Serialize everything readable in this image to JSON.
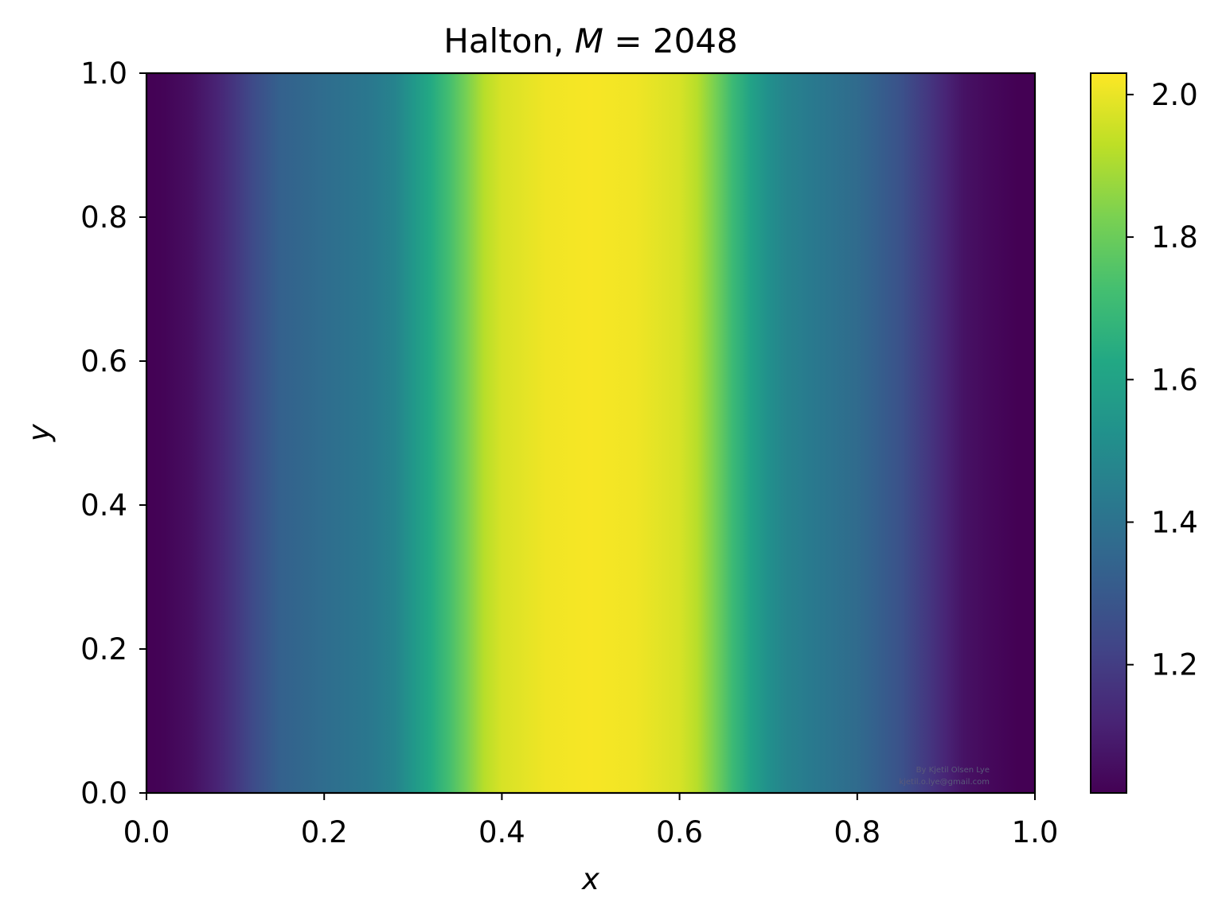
{
  "chart_data": {
    "type": "heatmap",
    "title_prefix": "Halton, ",
    "title_var": "M",
    "title_eq": " = 2048",
    "xlabel": "x",
    "ylabel": "y",
    "xlim": [
      0.0,
      1.0
    ],
    "ylim": [
      0.0,
      1.0
    ],
    "xticks": [
      "0.0",
      "0.2",
      "0.4",
      "0.6",
      "0.8",
      "1.0"
    ],
    "yticks": [
      "0.0",
      "0.2",
      "0.4",
      "0.6",
      "0.8",
      "1.0"
    ],
    "grid": false,
    "colormap": "viridis",
    "colorbar": {
      "min": 1.02,
      "max": 2.03,
      "ticks": [
        "1.2",
        "1.4",
        "1.6",
        "1.8",
        "2.0"
      ]
    },
    "field_description": "Values vary primarily with x; maximum near x = 0.5 and minimum at x = 0 and x = 1; roughly constant along y.",
    "profile_x": [
      0.0,
      0.02,
      0.05,
      0.08,
      0.1,
      0.12,
      0.15,
      0.18,
      0.2,
      0.25,
      0.28,
      0.3,
      0.32,
      0.34,
      0.36,
      0.38,
      0.4,
      0.45,
      0.5,
      0.55,
      0.6,
      0.62,
      0.64,
      0.66,
      0.68,
      0.7,
      0.72,
      0.75,
      0.8,
      0.82,
      0.85,
      0.88,
      0.9,
      0.92,
      0.95,
      0.98,
      1.0
    ],
    "profile_values": [
      1.02,
      1.03,
      1.06,
      1.12,
      1.18,
      1.25,
      1.33,
      1.36,
      1.38,
      1.42,
      1.47,
      1.55,
      1.63,
      1.72,
      1.82,
      1.92,
      1.97,
      2.01,
      2.02,
      2.01,
      1.97,
      1.92,
      1.82,
      1.7,
      1.6,
      1.52,
      1.47,
      1.43,
      1.37,
      1.33,
      1.27,
      1.18,
      1.12,
      1.07,
      1.04,
      1.02,
      1.02
    ],
    "watermark_line1": "By Kjetil Olsen Lye",
    "watermark_line2": "kjetil.o.lye@gmail.com"
  }
}
